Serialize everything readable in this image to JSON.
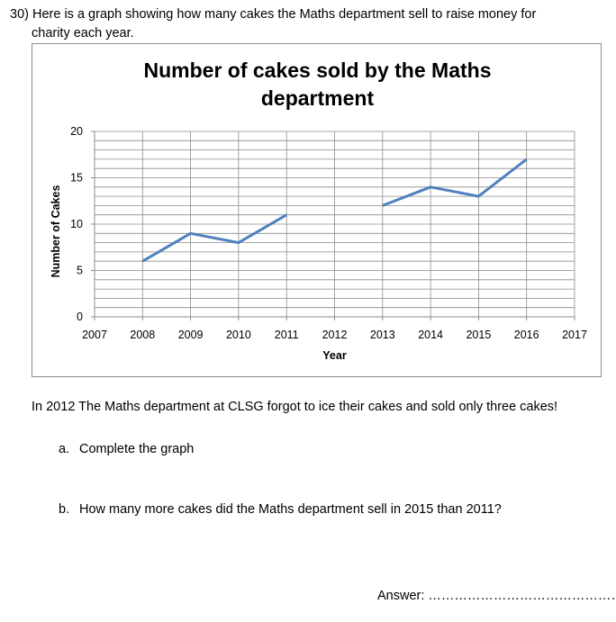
{
  "question": {
    "number": "30)",
    "text_line1": "Here is a graph showing how many cakes the Maths department sell to raise money for",
    "text_line2": "charity each year."
  },
  "chart_data": {
    "type": "line",
    "title_line1": "Number of cakes sold by the Maths",
    "title_line2": "department",
    "xlabel": "Year",
    "ylabel": "Number of Cakes",
    "x": [
      2007,
      2008,
      2009,
      2010,
      2011,
      2012,
      2013,
      2014,
      2015,
      2016,
      2017
    ],
    "xlim": [
      2007,
      2017
    ],
    "ylim": [
      0,
      20
    ],
    "yticks": [
      0,
      5,
      10,
      15,
      20
    ],
    "minor_grid_step": 1,
    "grid": true,
    "line_color": "#4f81bd",
    "segments": [
      {
        "x": [
          2008,
          2009,
          2010,
          2011
        ],
        "y": [
          6,
          9,
          8,
          11
        ]
      },
      {
        "x": [
          2013,
          2014,
          2015,
          2016
        ],
        "y": [
          12,
          14,
          13,
          17
        ]
      }
    ]
  },
  "intro": "In 2012 The Maths department at CLSG forgot to ice their cakes and sold only three cakes!",
  "parts": [
    {
      "letter": "a.",
      "text": "Complete the graph"
    },
    {
      "letter": "b.",
      "text": "How many more cakes did the Maths department sell in 2015 than 2011?"
    }
  ],
  "answer": {
    "label": "Answer:",
    "dots": "…………………………………………"
  }
}
